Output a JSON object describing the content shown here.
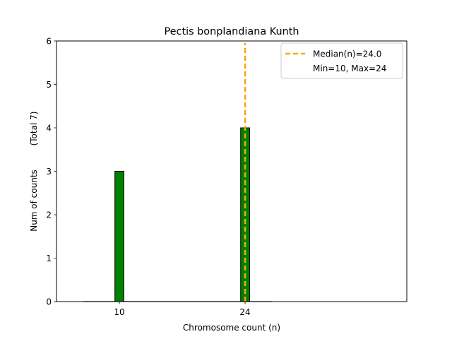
{
  "chart_data": {
    "type": "bar",
    "title": "Pectis bonplandiana Kunth",
    "xlabel": "Chromosome count (n)",
    "ylabel": "Num of counts",
    "ylabel_total": "(Total 7)",
    "xlim": [
      3,
      42
    ],
    "ylim": [
      0,
      6
    ],
    "yticks": [
      0,
      1,
      2,
      3,
      4,
      5,
      6
    ],
    "xticks": [
      10,
      24
    ],
    "bins": [
      {
        "x": 10,
        "count": 3
      },
      {
        "x": 24,
        "count": 4
      }
    ],
    "baseline_extent": [
      6,
      27
    ],
    "bar_width": 1,
    "bar_color": "#008000",
    "bar_edge_color": "#000000",
    "median": {
      "value": 24.0,
      "color": "#ffa500"
    },
    "legend": {
      "position": "upper right",
      "entries": [
        "Median(n)=24.0",
        "Min=10, Max=24"
      ]
    },
    "grid": false
  }
}
